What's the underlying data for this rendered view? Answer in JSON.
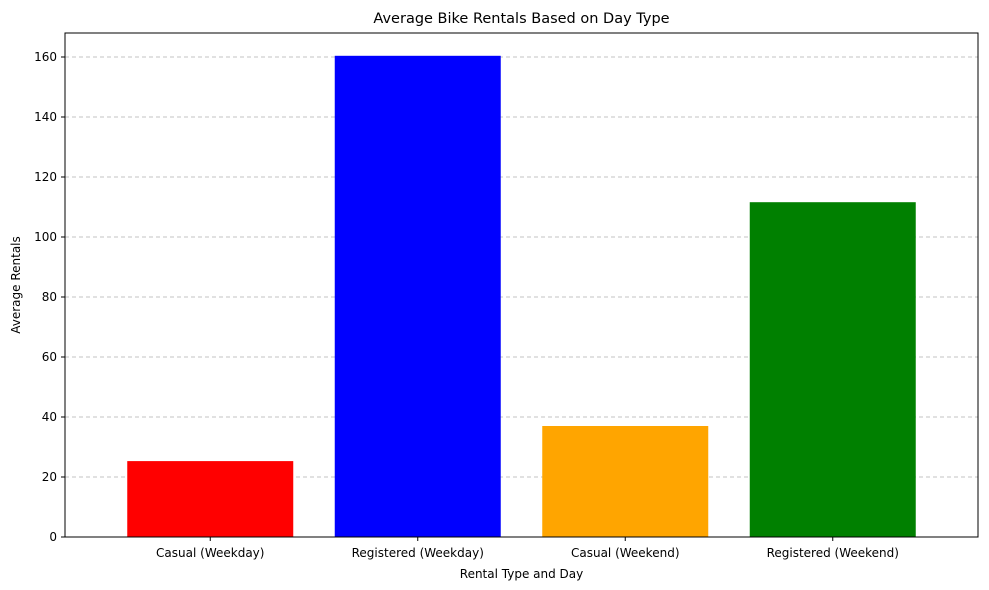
{
  "chart_data": {
    "type": "bar",
    "title": "Average Bike Rentals Based on Day Type",
    "xlabel": "Rental Type and Day",
    "ylabel": "Average Rentals",
    "categories": [
      "Casual (Weekday)",
      "Registered (Weekday)",
      "Casual (Weekend)",
      "Registered (Weekend)"
    ],
    "values": [
      25.3,
      160.4,
      37.0,
      111.6
    ],
    "colors": [
      "#ff0000",
      "#0000ff",
      "#ffa500",
      "#008000"
    ],
    "ylim": [
      0,
      168
    ],
    "yticks": [
      0,
      20,
      40,
      60,
      80,
      100,
      120,
      140,
      160
    ],
    "grid": "y-dashed",
    "legend": "none"
  }
}
